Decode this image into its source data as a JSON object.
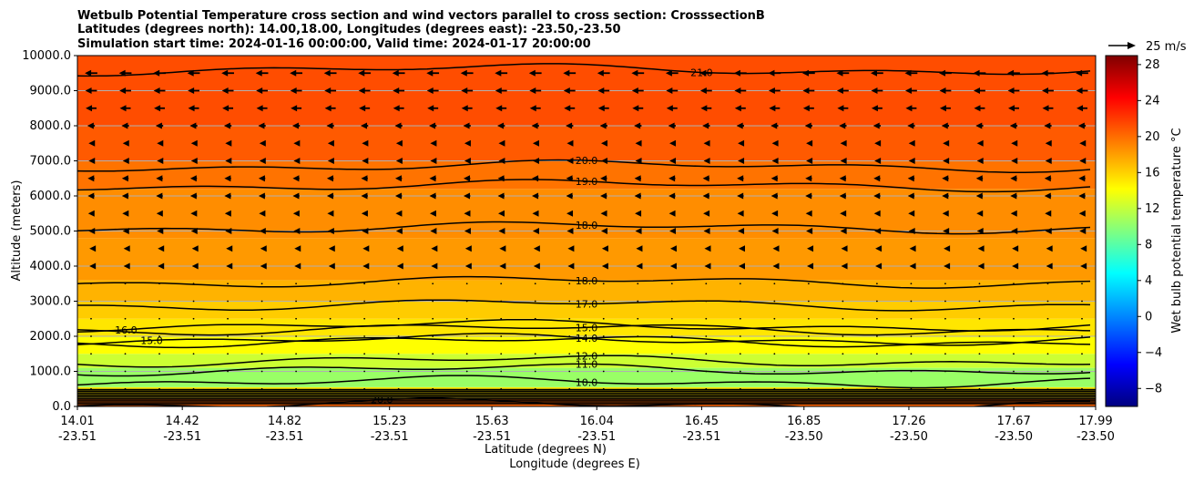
{
  "chart_data": {
    "type": "heatmap",
    "title_lines": [
      "Wetbulb Potential Temperature cross section and wind vectors parallel to cross section: CrosssectionB",
      "Latitudes (degrees north): 14.00,18.00, Longitudes (degrees east): -23.50,-23.50",
      "Simulation start time: 2024-01-16 00:00:00, Valid time: 2024-01-17 20:00:00"
    ],
    "ylabel": "Altitude (meters)",
    "xlabel_lat": "Latitude (degrees N)",
    "xlabel_lon": "Longitude (degrees E)",
    "ylim": [
      0,
      10000
    ],
    "y_ticks": [
      0,
      1000,
      2000,
      3000,
      4000,
      5000,
      6000,
      7000,
      8000,
      9000,
      10000
    ],
    "y_tick_labels": [
      "0.0",
      "1000.0",
      "2000.0",
      "3000.0",
      "4000.0",
      "5000.0",
      "6000.0",
      "7000.0",
      "8000.0",
      "9000.0",
      "10000.0"
    ],
    "x_ticks": [
      {
        "lat": "14.01",
        "lon": "-23.51"
      },
      {
        "lat": "14.42",
        "lon": "-23.51"
      },
      {
        "lat": "14.82",
        "lon": "-23.51"
      },
      {
        "lat": "15.23",
        "lon": "-23.51"
      },
      {
        "lat": "15.63",
        "lon": "-23.51"
      },
      {
        "lat": "16.04",
        "lon": "-23.51"
      },
      {
        "lat": "16.45",
        "lon": "-23.51"
      },
      {
        "lat": "16.85",
        "lon": "-23.50"
      },
      {
        "lat": "17.26",
        "lon": "-23.50"
      },
      {
        "lat": "17.67",
        "lon": "-23.50"
      },
      {
        "lat": "17.99",
        "lon": "-23.50"
      }
    ],
    "colorbar": {
      "label": "Wet bulb potential temperature °C",
      "range": [
        -10,
        29
      ],
      "ticks": [
        -8,
        -4,
        0,
        4,
        8,
        12,
        16,
        20,
        24,
        28
      ],
      "tick_labels": [
        "−8",
        "−4",
        "0",
        "4",
        "8",
        "12",
        "16",
        "20",
        "24",
        "28"
      ]
    },
    "vector_key": {
      "label": "25 m/s",
      "speed_ms": 25
    },
    "bands": [
      {
        "z0": 0,
        "z1": 250,
        "value": 20
      },
      {
        "z0": 250,
        "z1": 550,
        "value": 15
      },
      {
        "z0": 550,
        "z1": 1100,
        "value": 10
      },
      {
        "z0": 1100,
        "z1": 1500,
        "value": 12
      },
      {
        "z0": 1500,
        "z1": 2000,
        "value": 14
      },
      {
        "z0": 2000,
        "z1": 2500,
        "value": 15
      },
      {
        "z0": 2500,
        "z1": 3000,
        "value": 16
      },
      {
        "z0": 3000,
        "z1": 3600,
        "value": 17
      },
      {
        "z0": 3600,
        "z1": 4800,
        "value": 18
      },
      {
        "z0": 4800,
        "z1": 6200,
        "value": 18.5
      },
      {
        "z0": 6200,
        "z1": 7000,
        "value": 19.5
      },
      {
        "z0": 7000,
        "z1": 8000,
        "value": 20.5
      },
      {
        "z0": 8000,
        "z1": 10000,
        "value": 21
      }
    ],
    "contours": [
      {
        "level": "20.0",
        "z": 6850,
        "label_lat": 16.0
      },
      {
        "level": "19.0",
        "z": 6300,
        "label_lat": 16.0
      },
      {
        "level": "18.0",
        "z": 5100,
        "label_lat": 16.0
      },
      {
        "level": "18.0",
        "z": 3550,
        "label_lat": 16.0
      },
      {
        "level": "17.0",
        "z": 2900,
        "label_lat": 16.0
      },
      {
        "level": "15.0",
        "z": 2200,
        "label_lat": 16.0
      },
      {
        "level": "14.0",
        "z": 1850,
        "label_lat": 16.0
      },
      {
        "level": "12.0",
        "z": 1300,
        "label_lat": 16.0
      },
      {
        "level": "11.0",
        "z": 1050,
        "label_lat": 16.0
      },
      {
        "level": "21.0",
        "z": 9600,
        "label_lat": 16.45
      },
      {
        "level": "16.0",
        "z": 2300,
        "label_lat": 14.2
      },
      {
        "level": "15.0",
        "z": 1900,
        "label_lat": 14.3
      },
      {
        "level": "10.0",
        "z": 700,
        "label_lat": 16.0
      },
      {
        "level": "20.0",
        "z": 60,
        "label_lat": 15.2
      }
    ],
    "wind_rows": [
      {
        "z": 9500,
        "u": -15
      },
      {
        "z": 9000,
        "u": -14
      },
      {
        "z": 8500,
        "u": -13
      },
      {
        "z": 8000,
        "u": -9
      },
      {
        "z": 7500,
        "u": -6
      },
      {
        "z": 7000,
        "u": -6
      },
      {
        "z": 6500,
        "u": -8
      },
      {
        "z": 6000,
        "u": -8
      },
      {
        "z": 5500,
        "u": -7
      },
      {
        "z": 5000,
        "u": -6
      },
      {
        "z": 4500,
        "u": -4
      },
      {
        "z": 4000,
        "u": -4
      },
      {
        "z": 3500,
        "u": 2
      },
      {
        "z": 3000,
        "u": 2
      },
      {
        "z": 2500,
        "u": 1
      },
      {
        "z": 2000,
        "u": 1
      },
      {
        "z": 1500,
        "u": 1
      },
      {
        "z": 1000,
        "u": 1
      },
      {
        "z": 500,
        "u": -2
      }
    ]
  }
}
